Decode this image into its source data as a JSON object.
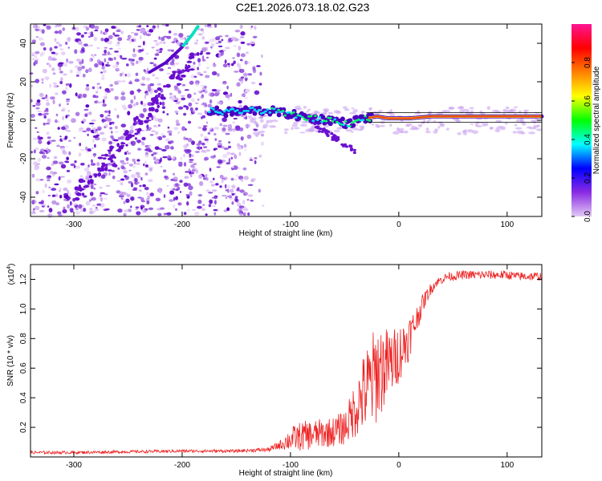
{
  "figure": {
    "title": "C2E1.2026.073.18.02.G23"
  },
  "chart_data": [
    {
      "type": "heatmap",
      "title": "C2E1.2026.073.18.02.G23",
      "xlabel": "Height of straight line (km)",
      "ylabel": "Frequency (Hz)",
      "xlim": [
        -340,
        132
      ],
      "ylim": [
        -50,
        50
      ],
      "x_ticks": [
        -300,
        -200,
        -100,
        0,
        100
      ],
      "y_ticks": [
        -40,
        -20,
        0,
        20,
        40
      ],
      "colorbar": {
        "label": "Normalized spectral amplitude",
        "range": [
          0,
          1
        ],
        "ticks": [
          "0.0",
          "0.2",
          "0.4",
          "0.6",
          "0.8"
        ],
        "colors": [
          "#e4c9f6",
          "#8a2be2",
          "#0000ff",
          "#00ffff",
          "#00ff00",
          "#ffff00",
          "#ff8000",
          "#ff0000",
          "#ff1493"
        ]
      },
      "ridge": {
        "x": [
          -175,
          -160,
          -140,
          -120,
          -100,
          -80,
          -60,
          -45,
          -40,
          -30,
          -20,
          -10,
          0,
          10,
          30,
          60,
          100,
          132
        ],
        "frequency": [
          5,
          4,
          5,
          5,
          3,
          1,
          0,
          -2,
          0,
          1,
          2,
          1,
          1,
          1,
          2,
          2,
          2,
          2
        ]
      },
      "branch": {
        "x": [
          -230,
          -215,
          -200,
          -190,
          -184
        ],
        "frequency": [
          25,
          30,
          38,
          45,
          50
        ]
      }
    },
    {
      "type": "line",
      "title": "",
      "xlabel": "Height of straight line (km)",
      "ylabel": "SNR (10 * v/v)",
      "y_multiplier": "(x10",
      "y_multiplier_exp": "4",
      "y_multiplier_close": ")",
      "xlim": [
        -340,
        132
      ],
      "ylim": [
        0,
        1.3
      ],
      "x_ticks": [
        -300,
        -200,
        -100,
        0,
        100
      ],
      "y_ticks": [
        "0.2",
        "0.4",
        "0.6",
        "0.8",
        "1.0",
        "1.2"
      ],
      "line_color": "#ee2222",
      "series": [
        {
          "name": "SNR",
          "x": [
            -340,
            -300,
            -250,
            -200,
            -150,
            -120,
            -110,
            -100,
            -90,
            -80,
            -70,
            -60,
            -50,
            -45,
            -40,
            -35,
            -30,
            -25,
            -20,
            -15,
            -10,
            -5,
            0,
            5,
            10,
            15,
            20,
            25,
            30,
            35,
            40,
            45,
            50,
            60,
            70,
            80,
            90,
            100,
            110,
            120,
            132
          ],
          "values": [
            0.03,
            0.03,
            0.035,
            0.04,
            0.04,
            0.05,
            0.08,
            0.12,
            0.14,
            0.15,
            0.16,
            0.17,
            0.2,
            0.26,
            0.33,
            0.4,
            0.45,
            0.5,
            0.58,
            0.6,
            0.62,
            0.65,
            0.7,
            0.75,
            0.82,
            0.9,
            1.0,
            1.08,
            1.14,
            1.18,
            1.2,
            1.22,
            1.22,
            1.23,
            1.23,
            1.23,
            1.23,
            1.23,
            1.22,
            1.22,
            1.22
          ],
          "noise_amplitude": [
            0.01,
            0.01,
            0.01,
            0.01,
            0.01,
            0.015,
            0.03,
            0.08,
            0.1,
            0.1,
            0.1,
            0.1,
            0.12,
            0.15,
            0.2,
            0.25,
            0.3,
            0.33,
            0.35,
            0.3,
            0.25,
            0.22,
            0.2,
            0.18,
            0.15,
            0.1,
            0.08,
            0.05,
            0.04,
            0.03,
            0.03,
            0.03,
            0.03,
            0.03,
            0.03,
            0.03,
            0.03,
            0.03,
            0.03,
            0.03,
            0.03
          ]
        }
      ]
    }
  ]
}
